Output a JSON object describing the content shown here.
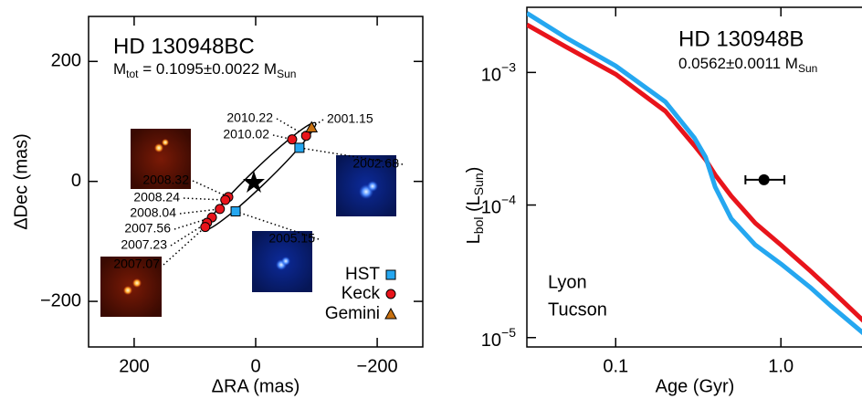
{
  "chart_data": [
    {
      "type": "scatter",
      "title": "HD 130948BC",
      "subtitle": [
        "M",
        "tot",
        " = 0.1095±0.0022 M",
        "Sun"
      ],
      "x_label": "ΔRA (mas)",
      "y_label": "ΔDec (mas)",
      "xlim": [
        275,
        -275
      ],
      "ylim": [
        -276,
        275
      ],
      "xticks": [
        200,
        0,
        {
          "value": -200,
          "label": "−200"
        }
      ],
      "yticks": [
        {
          "value": -200,
          "label": "−200"
        },
        0,
        200
      ],
      "series": [
        {
          "name": "HST",
          "color": "#25a7f0",
          "marker": "square",
          "labels": [
            "2002.68",
            "2005.15"
          ],
          "x": [
            -72,
            33
          ],
          "y": [
            56,
            -50
          ]
        },
        {
          "name": "Keck",
          "color": "#e8141b",
          "marker": "circle",
          "labels": [
            "2010.22",
            "2010.02",
            "2008.32",
            "2008.24",
            "2008.04",
            "2007.56",
            "2007.23",
            "2007.07"
          ],
          "x": [
            -83,
            -60,
            45,
            50,
            59,
            72,
            80,
            83
          ],
          "y": [
            76,
            70,
            -26,
            -31,
            -46,
            -60,
            -69,
            -76
          ]
        },
        {
          "name": "Gemini",
          "color": "#c8700f",
          "marker": "triangle",
          "labels": [
            "2001.15"
          ],
          "x": [
            -92
          ],
          "y": [
            90
          ]
        }
      ]
    },
    {
      "type": "line",
      "title": "HD 130948B",
      "subtitle": [
        "0.0562±0.0011 M",
        "Sun"
      ],
      "x_label": "Age (Gyr)",
      "y_label": [
        "L",
        "bol",
        " (L",
        "Sun",
        ")"
      ],
      "xscale": "log",
      "yscale": "log",
      "xlim": [
        0.029,
        3.3
      ],
      "ylim": [
        8.5e-06,
        0.0031
      ],
      "xticks": [
        0.1,
        {
          "value": 1,
          "label": "1.0"
        }
      ],
      "yticks": [
        {
          "value": 1e-05,
          "label": [
            "10",
            "−5"
          ]
        },
        {
          "value": 0.0001,
          "label": [
            "10",
            "−4"
          ]
        },
        {
          "value": 0.001,
          "label": [
            "10",
            "−3"
          ]
        }
      ],
      "x": [
        0.029,
        0.05,
        0.1,
        0.2,
        0.3,
        0.35,
        0.4,
        0.5,
        0.7,
        1.0,
        1.5,
        2.0,
        3.3
      ],
      "series": [
        {
          "name": "Lyon",
          "color": "#e8141b",
          "values": [
            0.00229,
            0.00156,
            0.00097,
            0.00051,
            0.00028,
            0.00022,
            0.000169,
            0.000117,
            7.3e-05,
            5e-05,
            3.2e-05,
            2.3e-05,
            1.27e-05
          ]
        },
        {
          "name": "Tucson",
          "color": "#25a7f0",
          "values": [
            0.0028,
            0.00183,
            0.00112,
            0.0006,
            0.00032,
            0.00023,
            0.000137,
            7.9e-05,
            5e-05,
            3.6e-05,
            2.4e-05,
            1.74e-05,
            1.03e-05
          ]
        }
      ],
      "point": {
        "x": 0.79,
        "y": 0.000155,
        "x_err": [
          0.18,
          0.26
        ],
        "y_err": 1.2e-05
      }
    }
  ]
}
